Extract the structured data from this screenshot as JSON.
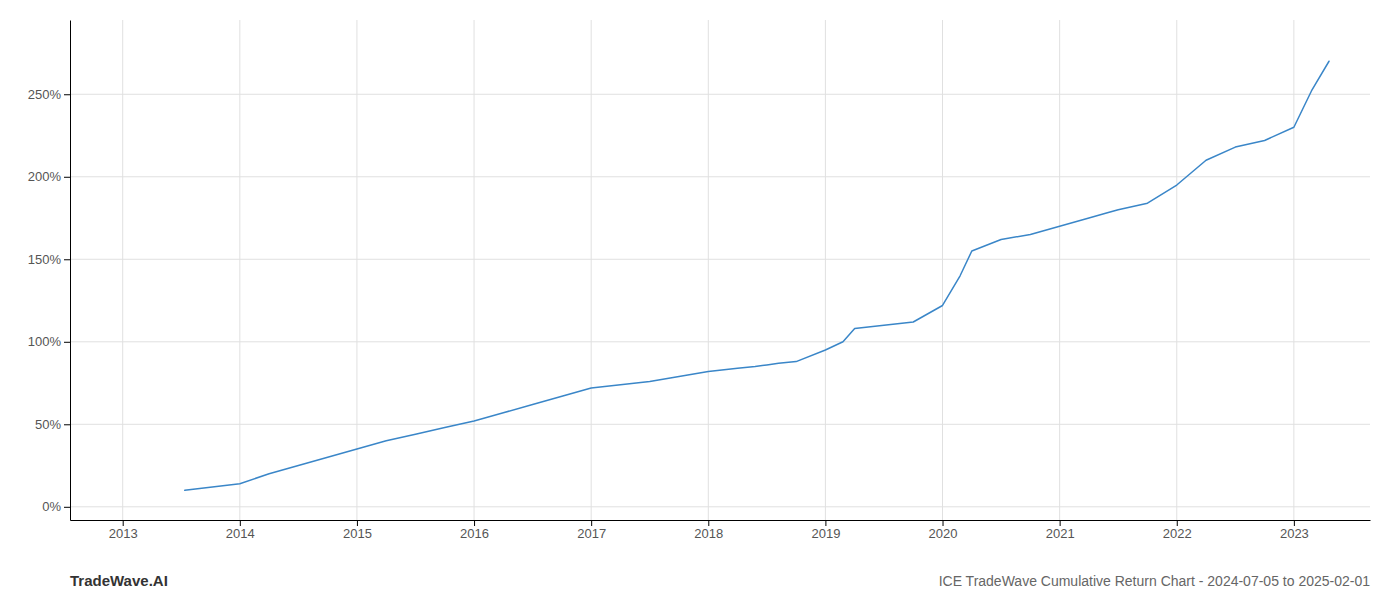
{
  "chart_data": {
    "type": "line",
    "title": "ICE TradeWave Cumulative Return Chart - 2024-07-05 to 2025-02-01",
    "annotations": [
      "TradeWave.AI"
    ],
    "x": [
      2013.53,
      2014.0,
      2014.25,
      2014.5,
      2014.75,
      2015.0,
      2015.25,
      2015.5,
      2015.75,
      2016.0,
      2016.25,
      2016.5,
      2016.75,
      2017.0,
      2017.25,
      2017.5,
      2017.75,
      2018.0,
      2018.25,
      2018.4,
      2018.5,
      2018.6,
      2018.75,
      2019.0,
      2019.15,
      2019.25,
      2019.5,
      2019.75,
      2020.0,
      2020.15,
      2020.25,
      2020.5,
      2020.75,
      2021.0,
      2021.25,
      2021.4,
      2021.5,
      2021.75,
      2022.0,
      2022.25,
      2022.5,
      2022.75,
      2023.0,
      2023.15,
      2023.3
    ],
    "values": [
      10,
      14,
      20,
      25,
      30,
      35,
      40,
      44,
      48,
      52,
      57,
      62,
      67,
      72,
      74,
      76,
      79,
      82,
      84,
      85,
      86,
      87,
      88,
      95,
      100,
      108,
      110,
      112,
      122,
      140,
      155,
      162,
      165,
      170,
      175,
      178,
      180,
      184,
      195,
      210,
      218,
      222,
      230,
      252,
      270
    ],
    "color": "#3a86c8",
    "xlim": [
      2012.55,
      2023.65
    ],
    "ylim": [
      -8,
      295
    ],
    "xticks": [
      2013,
      2014,
      2015,
      2016,
      2017,
      2018,
      2019,
      2020,
      2021,
      2022,
      2023
    ],
    "yticks": [
      {
        "value": 0,
        "label": "0%"
      },
      {
        "value": 50,
        "label": "50%"
      },
      {
        "value": 100,
        "label": "100%"
      },
      {
        "value": 150,
        "label": "150%"
      },
      {
        "value": 200,
        "label": "200%"
      },
      {
        "value": 250,
        "label": "250%"
      }
    ],
    "grid": true
  }
}
